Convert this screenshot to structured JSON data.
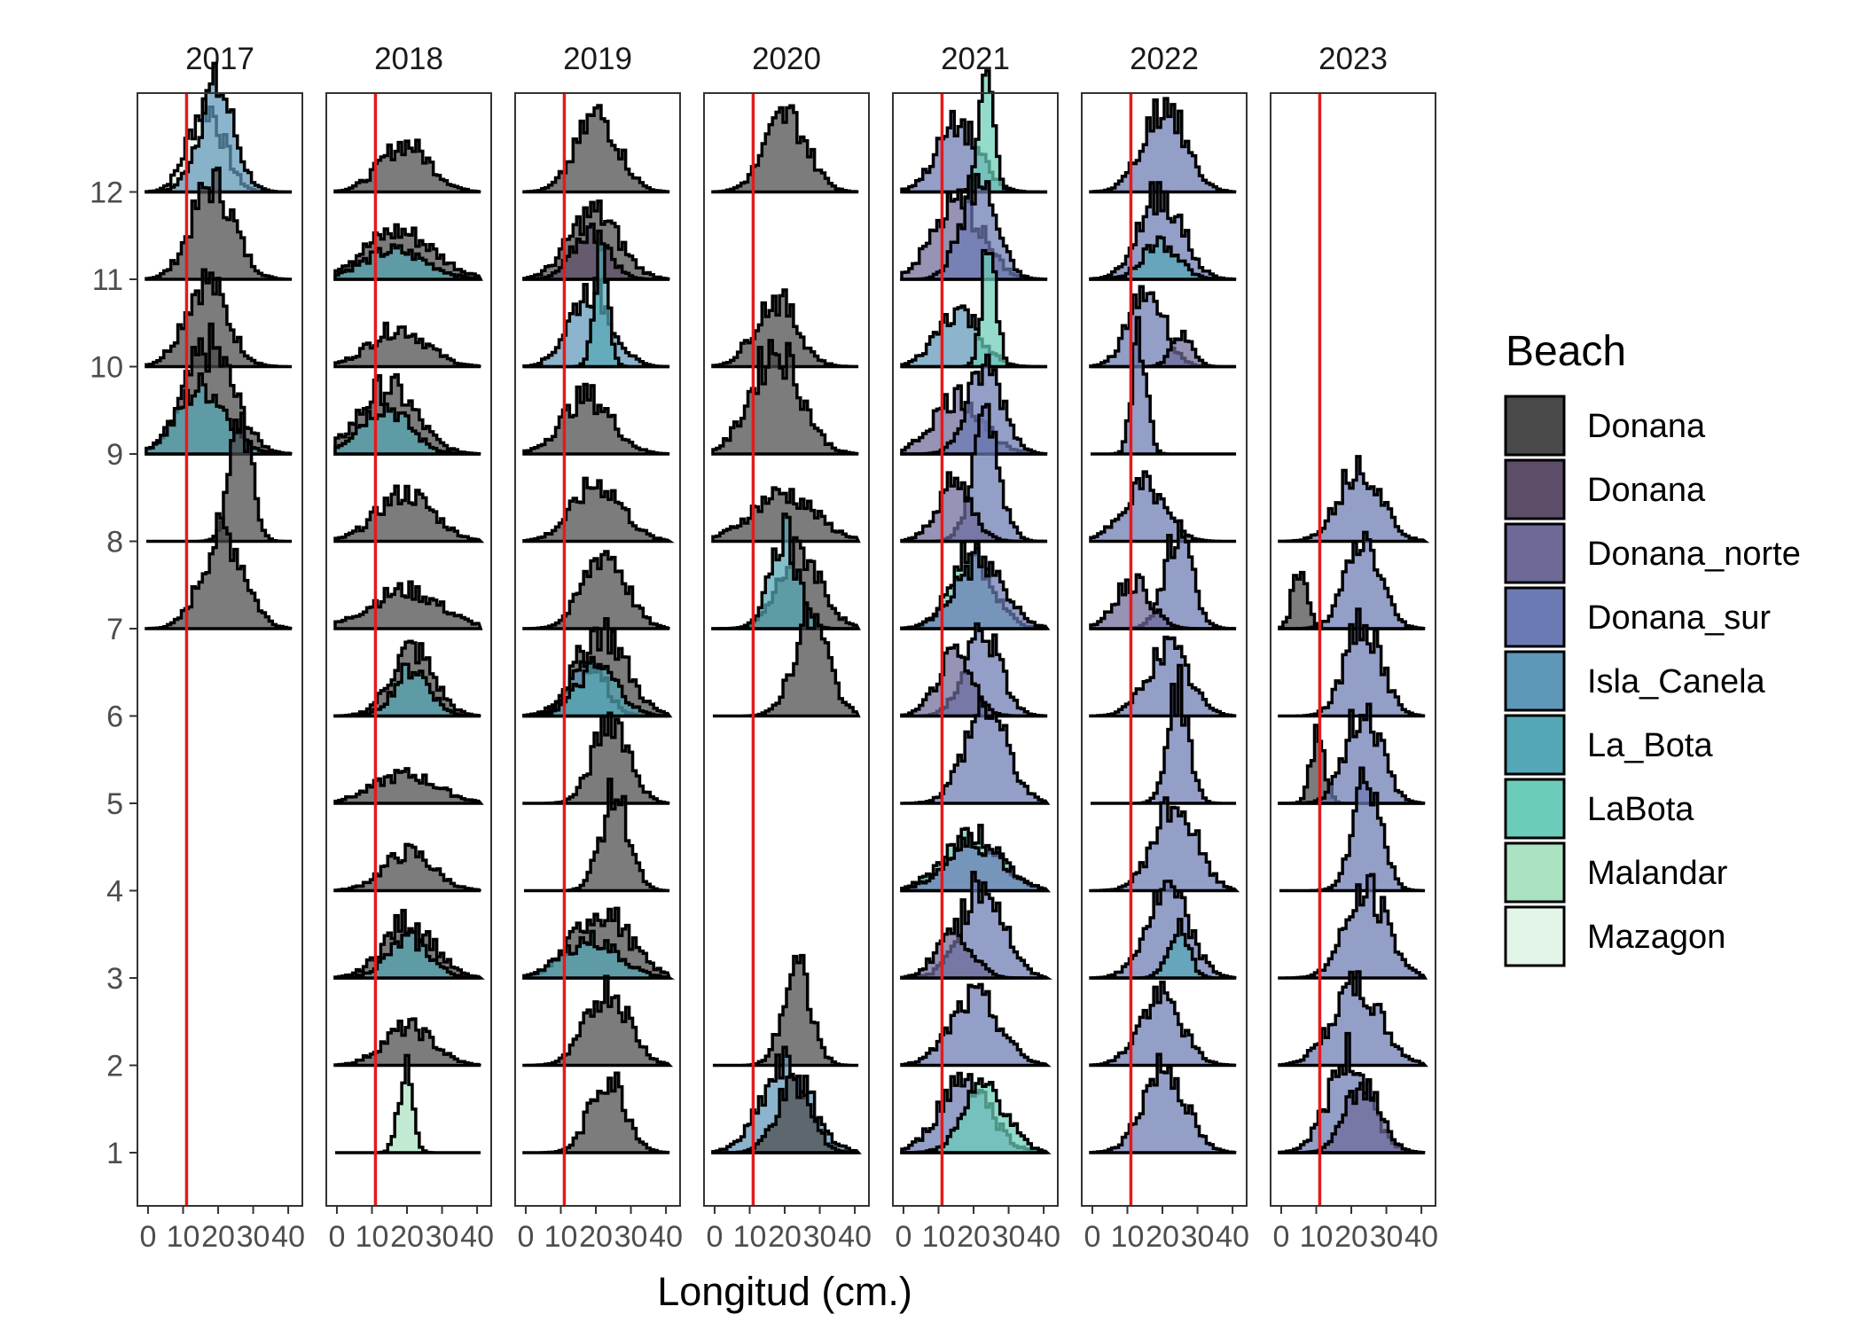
{
  "chart_data": {
    "type": "ridgeline-histogram",
    "xlabel": "Longitud (cm.)",
    "xlim": [
      -1,
      42
    ],
    "x_ticks": [
      0,
      10,
      20,
      30,
      40
    ],
    "x_tick_labels": [
      "0",
      "10",
      "20",
      "30",
      "40"
    ],
    "reference_line_x": 11,
    "reference_line_color": "#e41a1c",
    "y_categories": [
      "1",
      "2",
      "3",
      "4",
      "5",
      "6",
      "7",
      "8",
      "9",
      "10",
      "11",
      "12"
    ],
    "facets": [
      "2017",
      "2018",
      "2019",
      "2020",
      "2021",
      "2022",
      "2023"
    ],
    "legend": {
      "title": "Beach",
      "position": "right",
      "entries": [
        {
          "label": "Donana",
          "color": "#4a4a4a"
        },
        {
          "label": "Donana",
          "color": "#5e4d69"
        },
        {
          "label": "Donana_norte",
          "color": "#6d6a98"
        },
        {
          "label": "Donana_sur",
          "color": "#6b7ab3"
        },
        {
          "label": "Isla_Canela",
          "color": "#5f97b8"
        },
        {
          "label": "La_Bota",
          "color": "#54a7b6"
        },
        {
          "label": "LaBota",
          "color": "#6bcdb9"
        },
        {
          "label": "Malandar",
          "color": "#abe2c2"
        },
        {
          "label": "Mazagon",
          "color": "#e3f5e8"
        }
      ]
    },
    "ridges": [
      {
        "year": "2017",
        "month": 12,
        "beach": "Mazagon",
        "center": 17,
        "spread": 5,
        "peak": 0.9
      },
      {
        "year": "2017",
        "month": 12,
        "beach": "Isla_Canela",
        "center": 20,
        "spread": 5,
        "peak": 1.1
      },
      {
        "year": "2017",
        "month": 11,
        "beach": "Donana",
        "center": 19,
        "spread": 6,
        "peak": 1.0
      },
      {
        "year": "2017",
        "month": 10,
        "beach": "Donana",
        "center": 17,
        "spread": 6,
        "peak": 0.9
      },
      {
        "year": "2017",
        "month": 9,
        "beach": "Donana",
        "center": 18,
        "spread": 7,
        "peak": 1.1
      },
      {
        "year": "2017",
        "month": 9,
        "beach": "La_Bota",
        "center": 16,
        "spread": 7,
        "peak": 0.7
      },
      {
        "year": "2017",
        "month": 8,
        "beach": "Donana",
        "center": 27,
        "spread": 3,
        "peak": 1.3
      },
      {
        "year": "2017",
        "month": 7,
        "beach": "Donana",
        "center": 22,
        "spread": 6,
        "peak": 1.0
      },
      {
        "year": "2018",
        "month": 12,
        "beach": "Donana",
        "center": 20,
        "spread": 7,
        "peak": 0.5
      },
      {
        "year": "2018",
        "month": 11,
        "beach": "Donana",
        "center": 18,
        "spread": 10,
        "peak": 0.5
      },
      {
        "year": "2018",
        "month": 11,
        "beach": "La_Bota",
        "center": 17,
        "spread": 9,
        "peak": 0.3
      },
      {
        "year": "2018",
        "month": 10,
        "beach": "Donana",
        "center": 18,
        "spread": 8,
        "peak": 0.4
      },
      {
        "year": "2018",
        "month": 9,
        "beach": "Donana",
        "center": 15,
        "spread": 8,
        "peak": 0.7
      },
      {
        "year": "2018",
        "month": 9,
        "beach": "La_Bota",
        "center": 14,
        "spread": 7,
        "peak": 0.5
      },
      {
        "year": "2018",
        "month": 8,
        "beach": "Donana",
        "center": 20,
        "spread": 8,
        "peak": 0.5
      },
      {
        "year": "2018",
        "month": 7,
        "beach": "Donana",
        "center": 20,
        "spread": 10,
        "peak": 0.4
      },
      {
        "year": "2018",
        "month": 6,
        "beach": "Donana",
        "center": 22,
        "spread": 6,
        "peak": 0.7
      },
      {
        "year": "2018",
        "month": 6,
        "beach": "La_Bota",
        "center": 22,
        "spread": 5,
        "peak": 0.5
      },
      {
        "year": "2018",
        "month": 5,
        "beach": "Donana",
        "center": 20,
        "spread": 9,
        "peak": 0.3
      },
      {
        "year": "2018",
        "month": 4,
        "beach": "Donana",
        "center": 21,
        "spread": 7,
        "peak": 0.4
      },
      {
        "year": "2018",
        "month": 3,
        "beach": "Donana",
        "center": 21,
        "spread": 7,
        "peak": 0.6
      },
      {
        "year": "2018",
        "month": 3,
        "beach": "La_Bota",
        "center": 21,
        "spread": 6,
        "peak": 0.4
      },
      {
        "year": "2018",
        "month": 2,
        "beach": "Donana",
        "center": 21,
        "spread": 7,
        "peak": 0.4
      },
      {
        "year": "2018",
        "month": 1,
        "beach": "Malandar",
        "center": 20,
        "spread": 2,
        "peak": 0.9
      },
      {
        "year": "2019",
        "month": 12,
        "beach": "Donana",
        "center": 21,
        "spread": 6,
        "peak": 0.8
      },
      {
        "year": "2019",
        "month": 11,
        "beach": "Donana",
        "center": 20,
        "spread": 7,
        "peak": 0.7
      },
      {
        "year": "2019",
        "month": 11,
        "beach": "Donana",
        "center": 19,
        "spread": 5,
        "peak": 0.5
      },
      {
        "year": "2019",
        "month": 10,
        "beach": "Isla_Canela",
        "center": 19,
        "spread": 6,
        "peak": 0.8
      },
      {
        "year": "2019",
        "month": 10,
        "beach": "La_Bota",
        "center": 22,
        "spread": 2,
        "peak": 1.2
      },
      {
        "year": "2019",
        "month": 9,
        "beach": "Donana",
        "center": 18,
        "spread": 7,
        "peak": 0.6
      },
      {
        "year": "2019",
        "month": 8,
        "beach": "Donana",
        "center": 21,
        "spread": 7,
        "peak": 0.6
      },
      {
        "year": "2019",
        "month": 7,
        "beach": "Donana",
        "center": 23,
        "spread": 6,
        "peak": 0.8
      },
      {
        "year": "2019",
        "month": 6,
        "beach": "Donana",
        "center": 22,
        "spread": 7,
        "peak": 0.9
      },
      {
        "year": "2019",
        "month": 6,
        "beach": "Isla_Canela",
        "center": 18,
        "spread": 5,
        "peak": 0.6
      },
      {
        "year": "2019",
        "month": 6,
        "beach": "La_Bota",
        "center": 21,
        "spread": 6,
        "peak": 0.5
      },
      {
        "year": "2019",
        "month": 5,
        "beach": "Donana",
        "center": 25,
        "spread": 5,
        "peak": 0.9
      },
      {
        "year": "2019",
        "month": 4,
        "beach": "Donana",
        "center": 26,
        "spread": 4,
        "peak": 1.0
      },
      {
        "year": "2019",
        "month": 3,
        "beach": "Donana",
        "center": 22,
        "spread": 8,
        "peak": 0.7
      },
      {
        "year": "2019",
        "month": 3,
        "beach": "La_Bota",
        "center": 19,
        "spread": 8,
        "peak": 0.4
      },
      {
        "year": "2019",
        "month": 2,
        "beach": "Donana",
        "center": 24,
        "spread": 6,
        "peak": 0.8
      },
      {
        "year": "2019",
        "month": 1,
        "beach": "Donana",
        "center": 24,
        "spread": 5,
        "peak": 0.8
      },
      {
        "year": "2020",
        "month": 12,
        "beach": "Donana",
        "center": 21,
        "spread": 6,
        "peak": 0.8
      },
      {
        "year": "2020",
        "month": 10,
        "beach": "Donana",
        "center": 18,
        "spread": 6,
        "peak": 0.7
      },
      {
        "year": "2020",
        "month": 9,
        "beach": "Donana",
        "center": 18,
        "spread": 7,
        "peak": 1.1
      },
      {
        "year": "2020",
        "month": 8,
        "beach": "Donana",
        "center": 20,
        "spread": 9,
        "peak": 0.5
      },
      {
        "year": "2020",
        "month": 7,
        "beach": "Donana",
        "center": 25,
        "spread": 6,
        "peak": 0.8
      },
      {
        "year": "2020",
        "month": 7,
        "beach": "La_Bota",
        "center": 20,
        "spread": 4,
        "peak": 1.0
      },
      {
        "year": "2020",
        "month": 6,
        "beach": "Donana",
        "center": 28,
        "spread": 5,
        "peak": 1.0
      },
      {
        "year": "2020",
        "month": 2,
        "beach": "Donana",
        "center": 24,
        "spread": 4,
        "peak": 1.0
      },
      {
        "year": "2020",
        "month": 1,
        "beach": "Isla_Canela",
        "center": 21,
        "spread": 7,
        "peak": 0.9
      },
      {
        "year": "2020",
        "month": 1,
        "beach": "Donana",
        "center": 23,
        "spread": 5,
        "peak": 0.7
      },
      {
        "year": "2021",
        "month": 12,
        "beach": "Donana_sur",
        "center": 16,
        "spread": 6,
        "peak": 0.7
      },
      {
        "year": "2021",
        "month": 12,
        "beach": "LaBota",
        "center": 24,
        "spread": 2,
        "peak": 1.4
      },
      {
        "year": "2021",
        "month": 11,
        "beach": "Donana_norte",
        "center": 16,
        "spread": 7,
        "peak": 0.8
      },
      {
        "year": "2021",
        "month": 11,
        "beach": "Donana_sur",
        "center": 22,
        "spread": 5,
        "peak": 1.0
      },
      {
        "year": "2021",
        "month": 10,
        "beach": "Isla_Canela",
        "center": 16,
        "spread": 6,
        "peak": 0.6
      },
      {
        "year": "2021",
        "month": 10,
        "beach": "LaBota",
        "center": 25,
        "spread": 2,
        "peak": 1.3
      },
      {
        "year": "2021",
        "month": 9,
        "beach": "Donana_norte",
        "center": 16,
        "spread": 7,
        "peak": 0.6
      },
      {
        "year": "2021",
        "month": 9,
        "beach": "Donana_sur",
        "center": 24,
        "spread": 5,
        "peak": 0.9
      },
      {
        "year": "2021",
        "month": 8,
        "beach": "Donana_sur",
        "center": 24,
        "spread": 4,
        "peak": 1.2
      },
      {
        "year": "2021",
        "month": 8,
        "beach": "Donana_norte",
        "center": 15,
        "spread": 5,
        "peak": 0.6
      },
      {
        "year": "2021",
        "month": 7,
        "beach": "LaBota",
        "center": 20,
        "spread": 6,
        "peak": 0.8
      },
      {
        "year": "2021",
        "month": 7,
        "beach": "Donana_sur",
        "center": 22,
        "spread": 7,
        "peak": 0.7
      },
      {
        "year": "2021",
        "month": 6,
        "beach": "Donana_sur",
        "center": 23,
        "spread": 5,
        "peak": 0.9
      },
      {
        "year": "2021",
        "month": 6,
        "beach": "Donana_norte",
        "center": 15,
        "spread": 5,
        "peak": 0.6
      },
      {
        "year": "2021",
        "month": 5,
        "beach": "Donana_sur",
        "center": 24,
        "spread": 6,
        "peak": 1.0
      },
      {
        "year": "2021",
        "month": 4,
        "beach": "LaBota",
        "center": 20,
        "spread": 8,
        "peak": 0.6
      },
      {
        "year": "2021",
        "month": 4,
        "beach": "Donana_sur",
        "center": 21,
        "spread": 8,
        "peak": 0.5
      },
      {
        "year": "2021",
        "month": 3,
        "beach": "Donana_sur",
        "center": 23,
        "spread": 6,
        "peak": 1.0
      },
      {
        "year": "2021",
        "month": 3,
        "beach": "Donana_norte",
        "center": 15,
        "spread": 5,
        "peak": 0.5
      },
      {
        "year": "2021",
        "month": 2,
        "beach": "Donana_sur",
        "center": 21,
        "spread": 7,
        "peak": 0.7
      },
      {
        "year": "2021",
        "month": 1,
        "beach": "Donana_sur",
        "center": 18,
        "spread": 7,
        "peak": 0.8
      },
      {
        "year": "2021",
        "month": 1,
        "beach": "LaBota",
        "center": 24,
        "spread": 6,
        "peak": 0.7
      },
      {
        "year": "2022",
        "month": 12,
        "beach": "Donana_sur",
        "center": 21,
        "spread": 6,
        "peak": 0.9
      },
      {
        "year": "2022",
        "month": 11,
        "beach": "Donana_sur",
        "center": 20,
        "spread": 6,
        "peak": 0.9
      },
      {
        "year": "2022",
        "month": 11,
        "beach": "La_Bota",
        "center": 20,
        "spread": 5,
        "peak": 0.4
      },
      {
        "year": "2022",
        "month": 10,
        "beach": "Donana_sur",
        "center": 16,
        "spread": 5,
        "peak": 0.8
      },
      {
        "year": "2022",
        "month": 10,
        "beach": "Donana_norte",
        "center": 26,
        "spread": 3,
        "peak": 0.3
      },
      {
        "year": "2022",
        "month": 9,
        "beach": "Donana_sur",
        "center": 14,
        "spread": 2,
        "peak": 1.3
      },
      {
        "year": "2022",
        "month": 8,
        "beach": "Donana_sur",
        "center": 15,
        "spread": 6,
        "peak": 0.6
      },
      {
        "year": "2022",
        "month": 7,
        "beach": "Donana_sur",
        "center": 25,
        "spread": 4,
        "peak": 1.0
      },
      {
        "year": "2022",
        "month": 7,
        "beach": "Donana_norte",
        "center": 12,
        "spread": 5,
        "peak": 0.5
      },
      {
        "year": "2022",
        "month": 6,
        "beach": "Donana_sur",
        "center": 22,
        "spread": 6,
        "peak": 0.7
      },
      {
        "year": "2022",
        "month": 5,
        "beach": "Donana_sur",
        "center": 25,
        "spread": 3,
        "peak": 1.2
      },
      {
        "year": "2022",
        "month": 4,
        "beach": "Donana_sur",
        "center": 24,
        "spread": 6,
        "peak": 0.9
      },
      {
        "year": "2022",
        "month": 3,
        "beach": "Donana_sur",
        "center": 22,
        "spread": 6,
        "peak": 0.9
      },
      {
        "year": "2022",
        "month": 3,
        "beach": "La_Bota",
        "center": 25,
        "spread": 3,
        "peak": 0.5
      },
      {
        "year": "2022",
        "month": 2,
        "beach": "Donana_sur",
        "center": 20,
        "spread": 6,
        "peak": 0.7
      },
      {
        "year": "2022",
        "month": 1,
        "beach": "Donana_sur",
        "center": 21,
        "spread": 6,
        "peak": 0.9
      },
      {
        "year": "2023",
        "month": 8,
        "beach": "Donana_sur",
        "center": 23,
        "spread": 6,
        "peak": 0.8
      },
      {
        "year": "2023",
        "month": 7,
        "beach": "Donana",
        "center": 6,
        "spread": 2,
        "peak": 0.7
      },
      {
        "year": "2023",
        "month": 7,
        "beach": "Donana_sur",
        "center": 24,
        "spread": 5,
        "peak": 0.9
      },
      {
        "year": "2023",
        "month": 6,
        "beach": "Donana_sur",
        "center": 24,
        "spread": 5,
        "peak": 1.0
      },
      {
        "year": "2023",
        "month": 5,
        "beach": "Donana",
        "center": 11,
        "spread": 2,
        "peak": 0.7
      },
      {
        "year": "2023",
        "month": 5,
        "beach": "Donana_sur",
        "center": 24,
        "spread": 5,
        "peak": 1.0
      },
      {
        "year": "2023",
        "month": 4,
        "beach": "Donana_sur",
        "center": 25,
        "spread": 4,
        "peak": 1.2
      },
      {
        "year": "2023",
        "month": 3,
        "beach": "Donana_sur",
        "center": 25,
        "spread": 6,
        "peak": 0.9
      },
      {
        "year": "2023",
        "month": 2,
        "beach": "Donana_sur",
        "center": 22,
        "spread": 7,
        "peak": 0.8
      },
      {
        "year": "2023",
        "month": 1,
        "beach": "Donana_sur",
        "center": 20,
        "spread": 6,
        "peak": 1.0
      },
      {
        "year": "2023",
        "month": 1,
        "beach": "Donana_norte",
        "center": 24,
        "spread": 5,
        "peak": 0.7
      }
    ]
  }
}
